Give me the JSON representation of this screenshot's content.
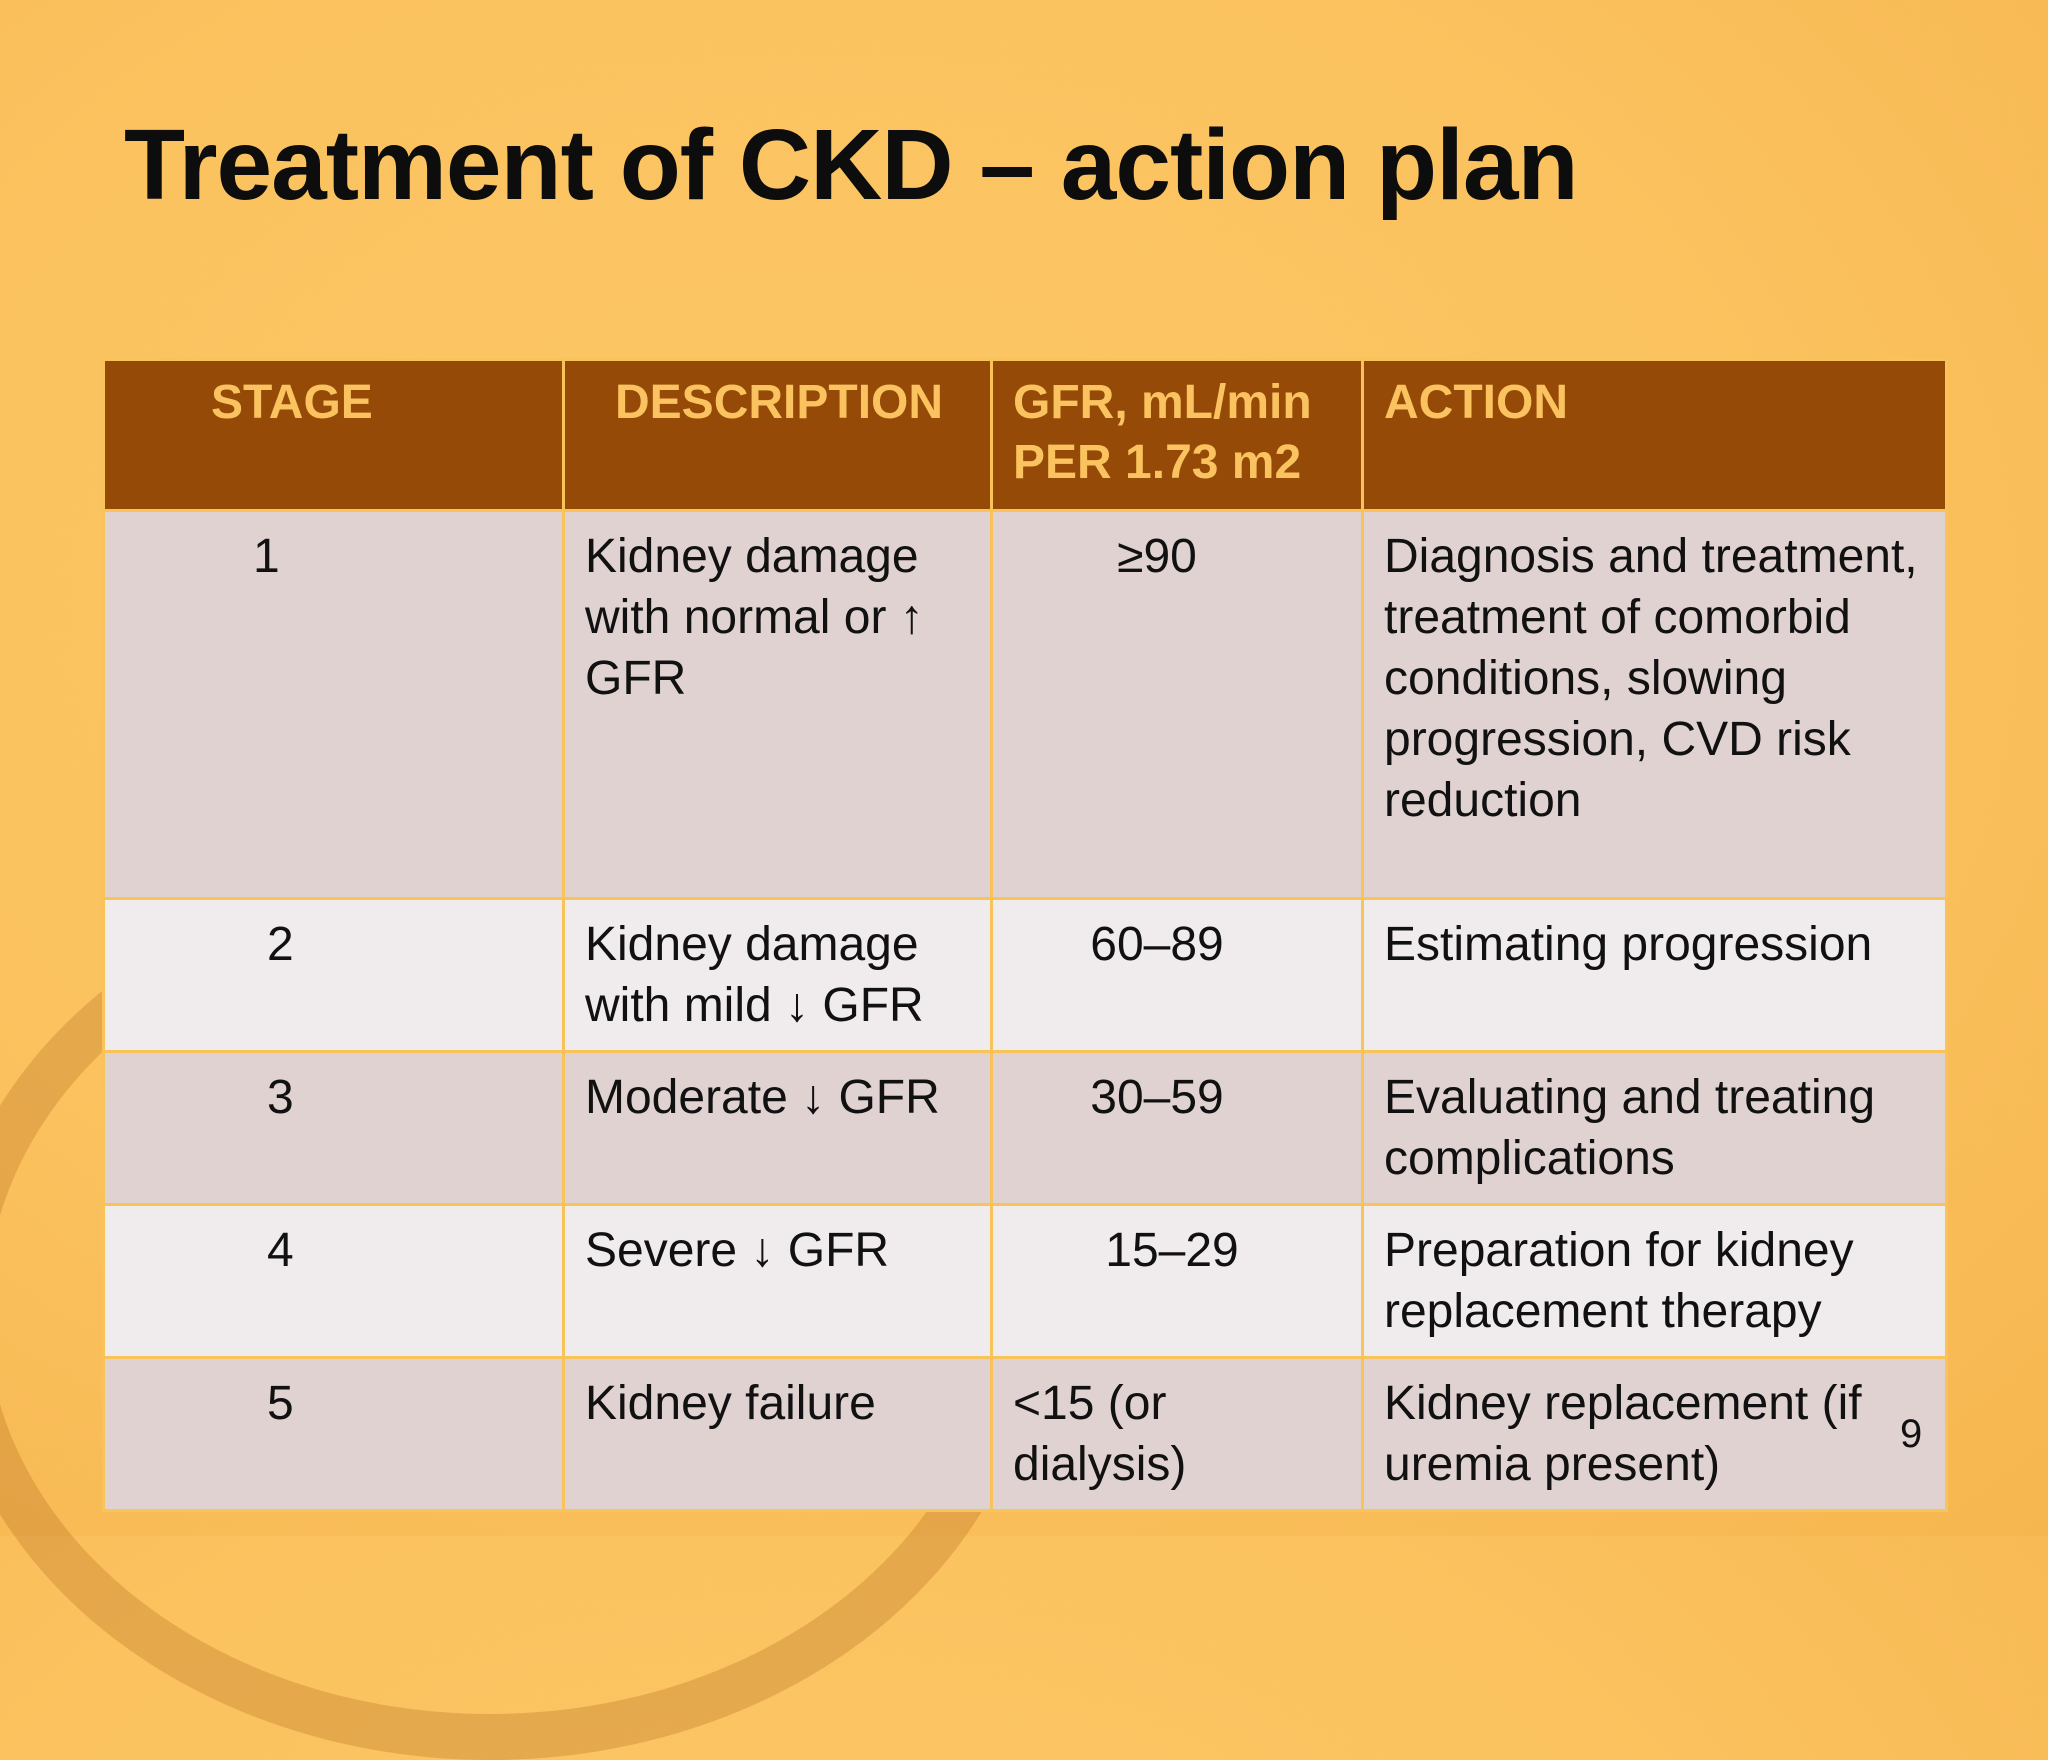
{
  "slide": {
    "title": "Treatment of CKD – action plan",
    "page_number": "9"
  },
  "table": {
    "headers": {
      "stage": "STAGE",
      "description": "DESCRIPTION",
      "gfr": "GFR, mL/min PER 1.73 m2",
      "action": "ACTION"
    },
    "rows": [
      {
        "stage": "1",
        "description": "Kidney damage with normal or ↑ GFR",
        "gfr": "≥90",
        "action": "Diagnosis and treatment, treatment of comorbid conditions, slowing progression, CVD risk reduction"
      },
      {
        "stage": "2",
        "description": "Kidney damage with mild ↓ GFR",
        "gfr": "60–89",
        "action": "Estimating progression"
      },
      {
        "stage": "3",
        "description": "Moderate ↓ GFR",
        "gfr": "30–59",
        "action": "Evaluating and treating complications"
      },
      {
        "stage": "4",
        "description": "Severe ↓ GFR",
        "gfr": "15–29",
        "action": "Preparation for kidney replacement therapy"
      },
      {
        "stage": "5",
        "description": "Kidney failure",
        "gfr": "<15 (or dialysis)",
        "action": "Kidney replacement (if uremia present)"
      }
    ]
  },
  "colors": {
    "background": "#fbc25f",
    "header_fill": "#964a08",
    "header_text": "#fac35f",
    "row_odd": "#e1d2d2",
    "row_even": "#f0eced",
    "border": "#f8c45a"
  }
}
